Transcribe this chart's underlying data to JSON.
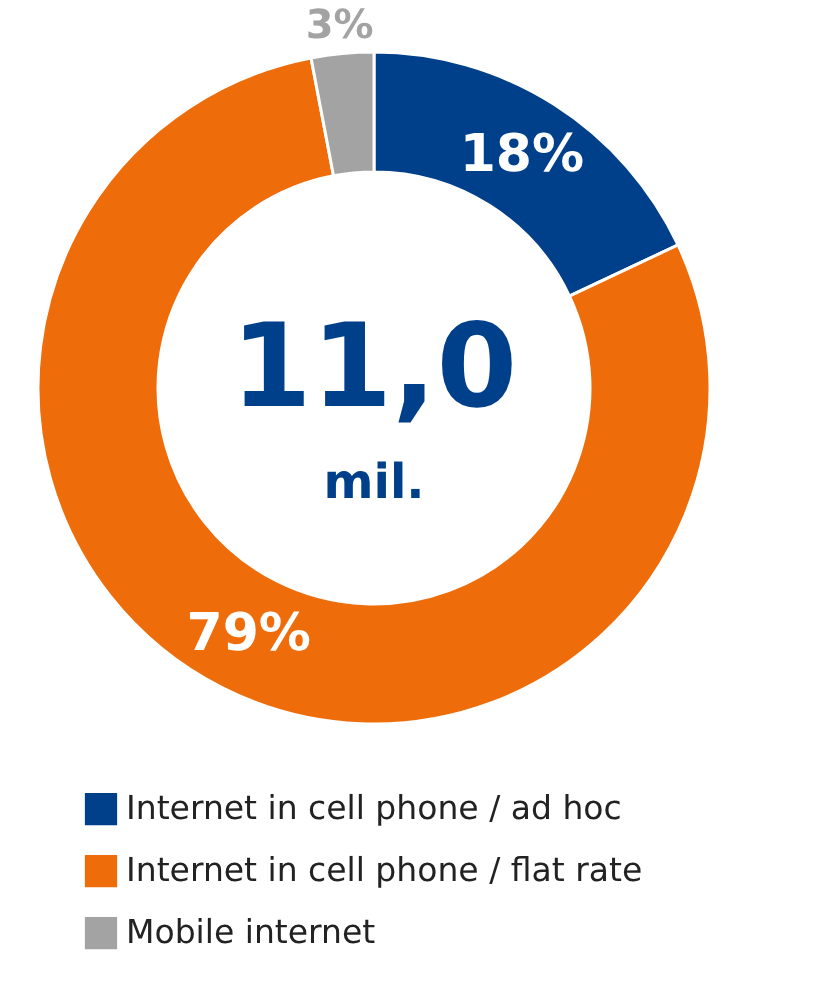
{
  "chart_data": {
    "type": "donut",
    "categories": [
      "Internet in cell phone / ad hoc",
      "Internet in cell phone / flat rate",
      "Mobile internet"
    ],
    "values": [
      18,
      79,
      3
    ],
    "colors": [
      "#003f8a",
      "#ee6c0a",
      "#a3a3a3"
    ],
    "value_labels": [
      "18%",
      "79%",
      "3%"
    ],
    "annotations": [
      "11,0",
      "mil."
    ],
    "legend": "bottom"
  }
}
